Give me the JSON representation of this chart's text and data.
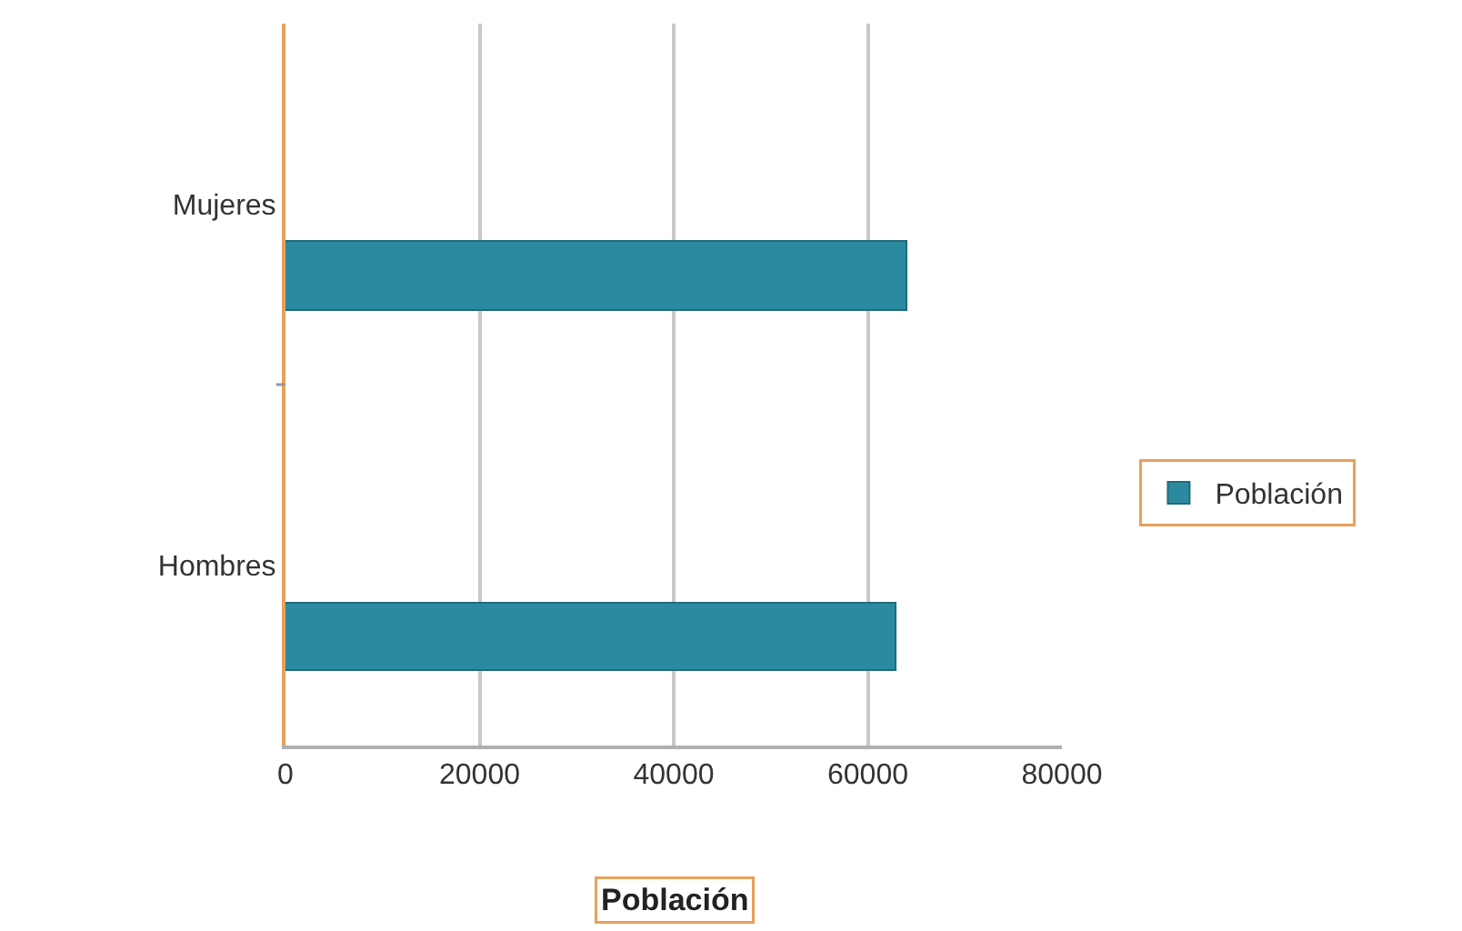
{
  "chart_data": {
    "type": "bar",
    "orientation": "horizontal",
    "categories": [
      "Mujeres",
      "Hombres"
    ],
    "series": [
      {
        "name": "Población",
        "color": "#2b8a9f",
        "values": [
          64000,
          63000
        ]
      }
    ],
    "xlabel": "Población",
    "xlim": [
      0,
      80000
    ],
    "xticks": [
      0,
      20000,
      40000,
      60000,
      80000
    ],
    "grid": "x",
    "legend": "right"
  }
}
